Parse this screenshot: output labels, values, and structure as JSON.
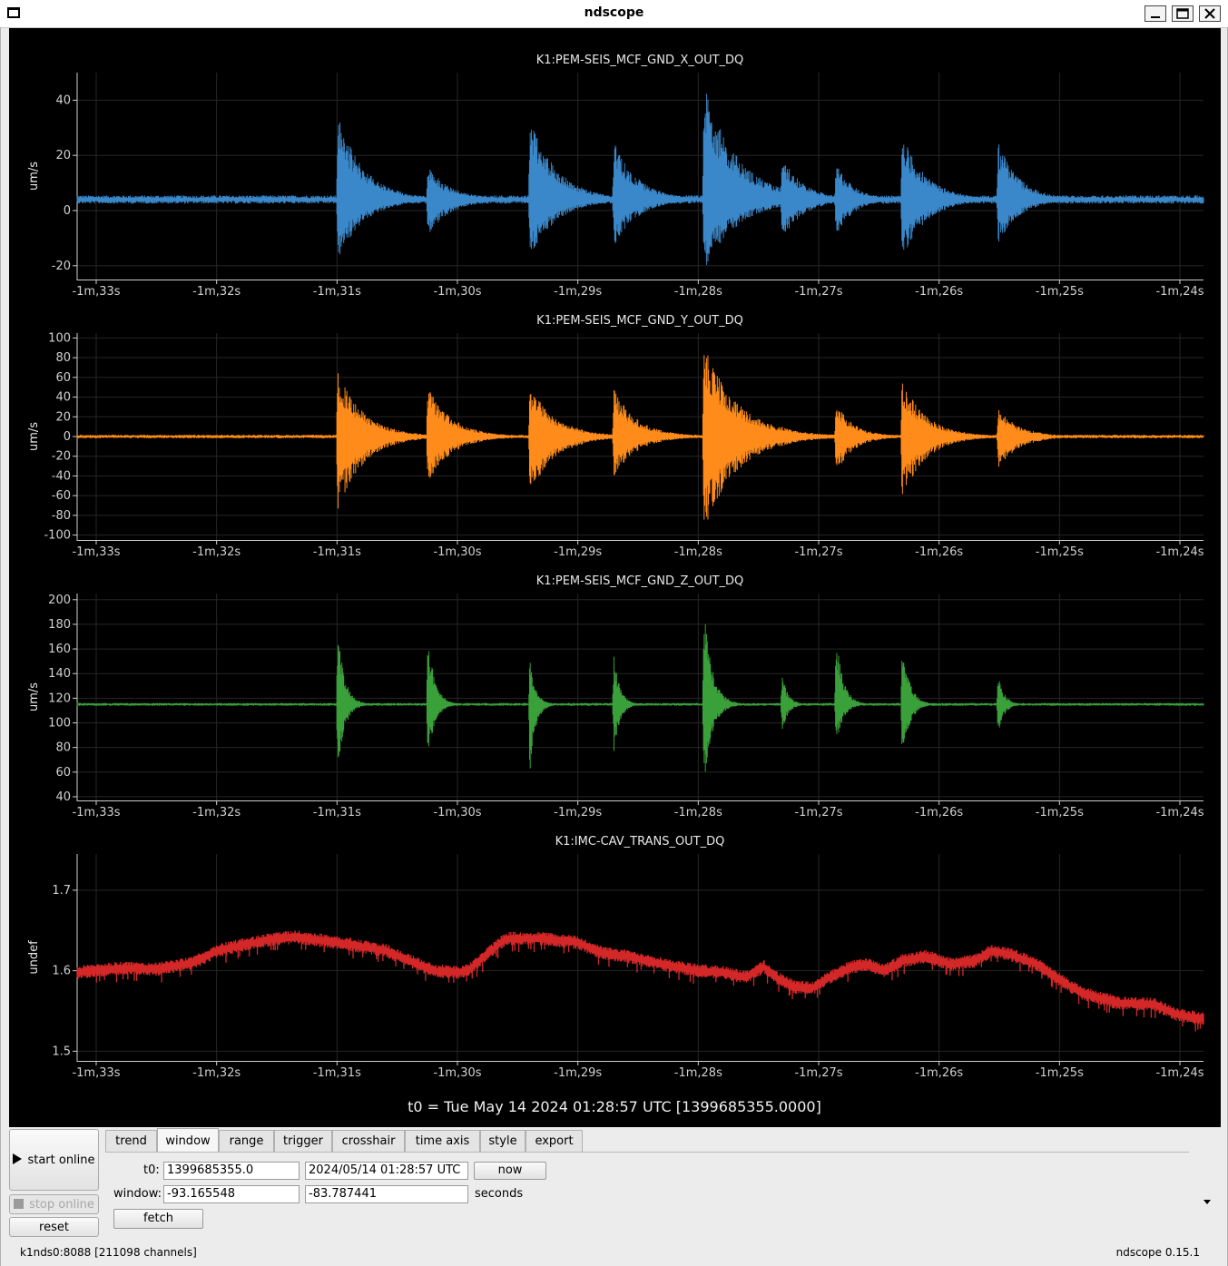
{
  "window": {
    "title": "ndscope",
    "buttons": {
      "minimize": "minimize-icon",
      "maximize": "maximize-icon",
      "close": "close-icon"
    }
  },
  "time_ticks": [
    "-1m,33s",
    "-1m,32s",
    "-1m,31s",
    "-1m,30s",
    "-1m,29s",
    "-1m,28s",
    "-1m,27s",
    "-1m,26s",
    "-1m,25s",
    "-1m,24s"
  ],
  "t0_label": "t0 = Tue May 14 2024 01:28:57 UTC [1399685355.0000]",
  "chart_data": [
    {
      "type": "line",
      "title": "K1:PEM-SEIS_MCF_GND_X_OUT_DQ",
      "ylabel": "um/s",
      "color": "#3a87c9",
      "ylim": [
        -25,
        50
      ],
      "yticks": [
        "40",
        "20",
        "0",
        "-20"
      ],
      "ytick_values": [
        40,
        20,
        0,
        -20
      ],
      "x_range": [
        -93.17,
        -83.79
      ],
      "baseline": 4,
      "noise": 1.0,
      "bursts": [
        {
          "t": -91.0,
          "up": 35,
          "down": -18,
          "decay": 0.22
        },
        {
          "t": -90.25,
          "up": 16,
          "down": -9,
          "decay": 0.2
        },
        {
          "t": -89.4,
          "up": 35,
          "down": -18,
          "decay": 0.22
        },
        {
          "t": -88.7,
          "up": 25,
          "down": -13,
          "decay": 0.2
        },
        {
          "t": -87.95,
          "up": 46,
          "down": -22,
          "decay": 0.28
        },
        {
          "t": -87.3,
          "up": 20,
          "down": -11,
          "decay": 0.18
        },
        {
          "t": -86.85,
          "up": 17,
          "down": -9,
          "decay": 0.15
        },
        {
          "t": -86.3,
          "up": 28,
          "down": -18,
          "decay": 0.2
        },
        {
          "t": -85.5,
          "up": 25,
          "down": -12,
          "decay": 0.18
        }
      ]
    },
    {
      "type": "line",
      "title": "K1:PEM-SEIS_MCF_GND_Y_OUT_DQ",
      "ylabel": "um/s",
      "color": "#ff8c1a",
      "ylim": [
        -105,
        105
      ],
      "yticks": [
        "100",
        "80",
        "60",
        "40",
        "20",
        "0",
        "-20",
        "-40",
        "-60",
        "-80",
        "-100"
      ],
      "ytick_values": [
        100,
        80,
        60,
        40,
        20,
        0,
        -20,
        -40,
        -60,
        -80,
        -100
      ],
      "x_range": [
        -93.17,
        -83.79
      ],
      "baseline": 0,
      "noise": 1.2,
      "bursts": [
        {
          "t": -91.0,
          "up": 66,
          "down": -75,
          "decay": 0.22
        },
        {
          "t": -90.25,
          "up": 52,
          "down": -48,
          "decay": 0.2
        },
        {
          "t": -89.4,
          "up": 52,
          "down": -58,
          "decay": 0.22
        },
        {
          "t": -88.7,
          "up": 48,
          "down": -40,
          "decay": 0.2
        },
        {
          "t": -87.95,
          "up": 93,
          "down": -95,
          "decay": 0.28
        },
        {
          "t": -87.3,
          "up": 10,
          "down": -10,
          "decay": 0.18
        },
        {
          "t": -86.85,
          "up": 35,
          "down": -38,
          "decay": 0.15
        },
        {
          "t": -86.3,
          "up": 58,
          "down": -63,
          "decay": 0.2
        },
        {
          "t": -85.5,
          "up": 28,
          "down": -32,
          "decay": 0.18
        }
      ]
    },
    {
      "type": "line",
      "title": "K1:PEM-SEIS_MCF_GND_Z_OUT_DQ",
      "ylabel": "um/s",
      "color": "#3aa03a",
      "ylim": [
        37,
        205
      ],
      "yticks": [
        "200",
        "180",
        "160",
        "140",
        "120",
        "100",
        "80",
        "60",
        "40"
      ],
      "ytick_values": [
        200,
        180,
        160,
        140,
        120,
        100,
        80,
        60,
        40
      ],
      "x_range": [
        -93.17,
        -83.79
      ],
      "baseline": 115,
      "noise": 0.8,
      "bursts": [
        {
          "t": -91.0,
          "up": 177,
          "down": 60,
          "decay": 0.06
        },
        {
          "t": -90.25,
          "up": 172,
          "down": 70,
          "decay": 0.06
        },
        {
          "t": -89.4,
          "up": 152,
          "down": 58,
          "decay": 0.05
        },
        {
          "t": -88.7,
          "up": 158,
          "down": 73,
          "decay": 0.05
        },
        {
          "t": -87.95,
          "up": 195,
          "down": 48,
          "decay": 0.07
        },
        {
          "t": -87.3,
          "up": 140,
          "down": 92,
          "decay": 0.05
        },
        {
          "t": -86.85,
          "up": 172,
          "down": 82,
          "decay": 0.06
        },
        {
          "t": -86.3,
          "up": 172,
          "down": 63,
          "decay": 0.06
        },
        {
          "t": -85.5,
          "up": 140,
          "down": 90,
          "decay": 0.05
        }
      ]
    },
    {
      "type": "line",
      "title": "K1:IMC-CAV_TRANS_OUT_DQ",
      "ylabel": "undef",
      "color": "#d42828",
      "ylim": [
        1.488,
        1.745
      ],
      "yticks": [
        "1.7",
        "1.6",
        "1.5"
      ],
      "ytick_values": [
        1.7,
        1.6,
        1.5
      ],
      "x_range": [
        -93.17,
        -83.79
      ],
      "band": 0.006,
      "x": [
        -93.17,
        -92.8,
        -92.5,
        -92.2,
        -92.0,
        -91.85,
        -91.6,
        -91.35,
        -91.0,
        -90.8,
        -90.6,
        -90.4,
        -90.2,
        -90.0,
        -89.9,
        -89.6,
        -89.3,
        -89.0,
        -88.8,
        -88.6,
        -88.4,
        -88.2,
        -88.0,
        -87.8,
        -87.6,
        -87.45,
        -87.35,
        -87.2,
        -87.05,
        -86.9,
        -86.75,
        -86.6,
        -86.45,
        -86.3,
        -86.1,
        -85.9,
        -85.7,
        -85.55,
        -85.4,
        -85.2,
        -85.0,
        -84.8,
        -84.5,
        -84.2,
        -84.0,
        -83.79
      ],
      "y": [
        1.598,
        1.603,
        1.602,
        1.61,
        1.625,
        1.63,
        1.638,
        1.642,
        1.635,
        1.63,
        1.625,
        1.612,
        1.6,
        1.598,
        1.602,
        1.64,
        1.64,
        1.635,
        1.622,
        1.618,
        1.612,
        1.605,
        1.6,
        1.598,
        1.592,
        1.605,
        1.592,
        1.58,
        1.578,
        1.592,
        1.603,
        1.608,
        1.6,
        1.612,
        1.618,
        1.608,
        1.612,
        1.625,
        1.62,
        1.61,
        1.59,
        1.572,
        1.56,
        1.558,
        1.545,
        1.54
      ]
    }
  ],
  "controls": {
    "start_label": "start online",
    "stop_label": "stop online",
    "reset_label": "reset",
    "tabs": [
      "trend",
      "window",
      "range",
      "trigger",
      "crosshair",
      "time axis",
      "style",
      "export"
    ],
    "active_tab": "window",
    "t0_label": "t0:",
    "t0_gps": "1399685355.0",
    "t0_utc": "2024/05/14 01:28:57 UTC",
    "now_label": "now",
    "window_label": "window:",
    "window_start": "-93.165548",
    "window_end": "-83.787441",
    "seconds_label": "seconds",
    "fetch_label": "fetch"
  },
  "status": {
    "server": "k1nds0:8088  [211098 channels]",
    "version": "ndscope 0.15.1"
  }
}
